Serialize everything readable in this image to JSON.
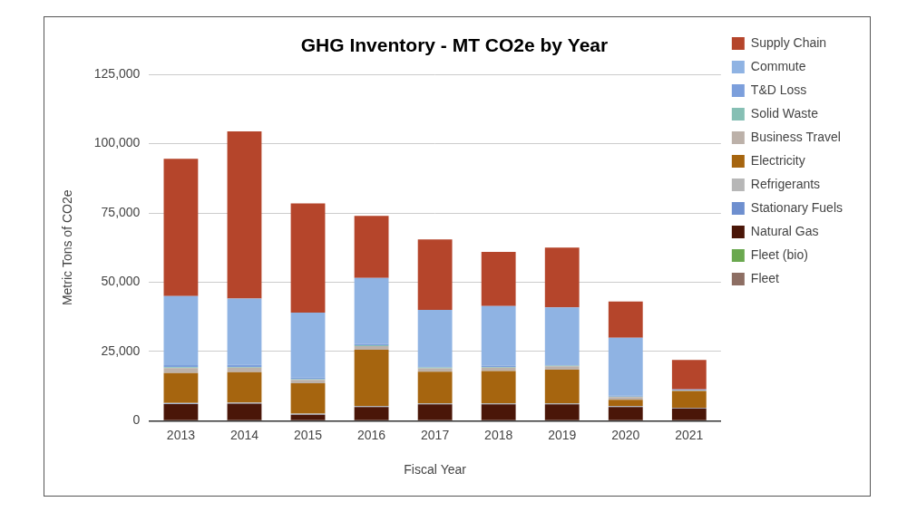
{
  "chart_data": {
    "type": "bar",
    "title": "GHG Inventory - MT CO2e by Year",
    "x_label": "Fiscal Year",
    "y_label": "Metric Tons of CO2e",
    "categories": [
      "2013",
      "2014",
      "2015",
      "2016",
      "2017",
      "2018",
      "2019",
      "2020",
      "2021"
    ],
    "stacked": true,
    "grid": true,
    "legend": "right",
    "ylim": [
      0,
      125000
    ],
    "yticks": [
      0,
      {
        "value": 25000,
        "label": "25,000"
      },
      {
        "value": 50000,
        "label": "50,000"
      },
      {
        "value": 75000,
        "label": "75,000"
      },
      {
        "value": 100000,
        "label": "100,000"
      },
      {
        "value": 125000,
        "label": "125,000"
      }
    ],
    "series": [
      {
        "name": "Supply Chain",
        "color": "#b5452b",
        "values": [
          49500,
          60300,
          39400,
          22400,
          25400,
          19500,
          21600,
          13100,
          10600
        ]
      },
      {
        "name": "Commute",
        "color": "#8fb3e3",
        "values": [
          25000,
          24000,
          23500,
          23800,
          20400,
          21600,
          20600,
          20900,
          200
        ]
      },
      {
        "name": "T&D Loss",
        "color": "#7c9fdc",
        "values": [
          700,
          700,
          500,
          500,
          400,
          400,
          400,
          300,
          200
        ]
      },
      {
        "name": "Solid Waste",
        "color": "#86bfb4",
        "values": [
          300,
          300,
          300,
          300,
          300,
          300,
          300,
          200,
          100
        ]
      },
      {
        "name": "Business Travel",
        "color": "#bcb1a9",
        "values": [
          1800,
          1600,
          1200,
          1300,
          1200,
          1200,
          1200,
          1000,
          100
        ]
      },
      {
        "name": "Electricity",
        "color": "#a6650f",
        "values": [
          10800,
          11000,
          11000,
          20300,
          11400,
          11600,
          12100,
          2200,
          6000
        ]
      },
      {
        "name": "Refrigerants",
        "color": "#b7b7b7",
        "values": [
          300,
          300,
          300,
          300,
          300,
          300,
          300,
          300,
          200
        ]
      },
      {
        "name": "Stationary Fuels",
        "color": "#6e8fcf",
        "values": [
          100,
          100,
          100,
          100,
          100,
          100,
          100,
          100,
          100
        ]
      },
      {
        "name": "Natural Gas",
        "color": "#4a1608",
        "values": [
          5800,
          5900,
          1900,
          4700,
          5700,
          5700,
          5700,
          4700,
          4200
        ]
      },
      {
        "name": "Fleet (bio)",
        "color": "#6aa84f",
        "values": [
          50,
          50,
          50,
          50,
          50,
          50,
          50,
          50,
          50
        ]
      },
      {
        "name": "Fleet",
        "color": "#8d6e63",
        "values": [
          200,
          200,
          200,
          200,
          200,
          200,
          200,
          200,
          200
        ]
      }
    ]
  }
}
